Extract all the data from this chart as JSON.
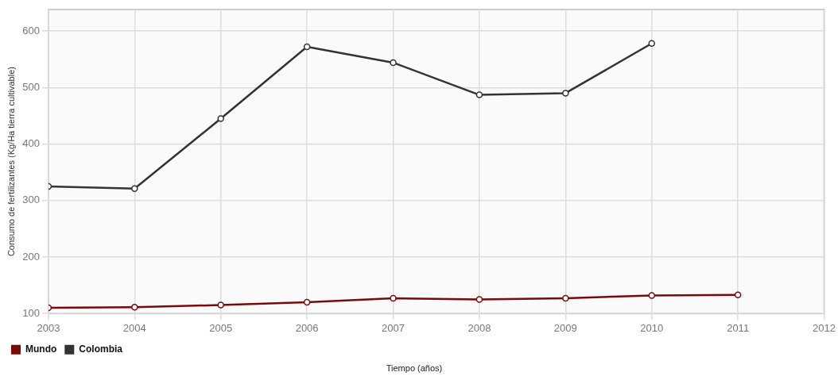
{
  "chart_data": {
    "type": "line",
    "xlabel": "Tiempo (años)",
    "ylabel": "Consumo de fertilizantes (Kg/Ha tierra cultivable)",
    "x": [
      2003,
      2004,
      2005,
      2006,
      2007,
      2008,
      2009,
      2010,
      2011
    ],
    "series": [
      {
        "name": "Mundo",
        "color": "#7a0a0a",
        "values": [
          110,
          111,
          115,
          120,
          127,
          125,
          127,
          132,
          133
        ]
      },
      {
        "name": "Colombia",
        "color": "#333333",
        "values": [
          325,
          321,
          445,
          572,
          544,
          487,
          490,
          578,
          null
        ]
      }
    ],
    "xlim": [
      2003,
      2012
    ],
    "xticks": [
      2003,
      2004,
      2005,
      2006,
      2007,
      2008,
      2009,
      2010,
      2011,
      2012
    ],
    "ylim": [
      100,
      638
    ],
    "yticks": [
      100,
      200,
      300,
      400,
      500,
      600
    ],
    "grid": true,
    "legend": "bottom left",
    "marker": "circle",
    "line_style": "solid"
  }
}
